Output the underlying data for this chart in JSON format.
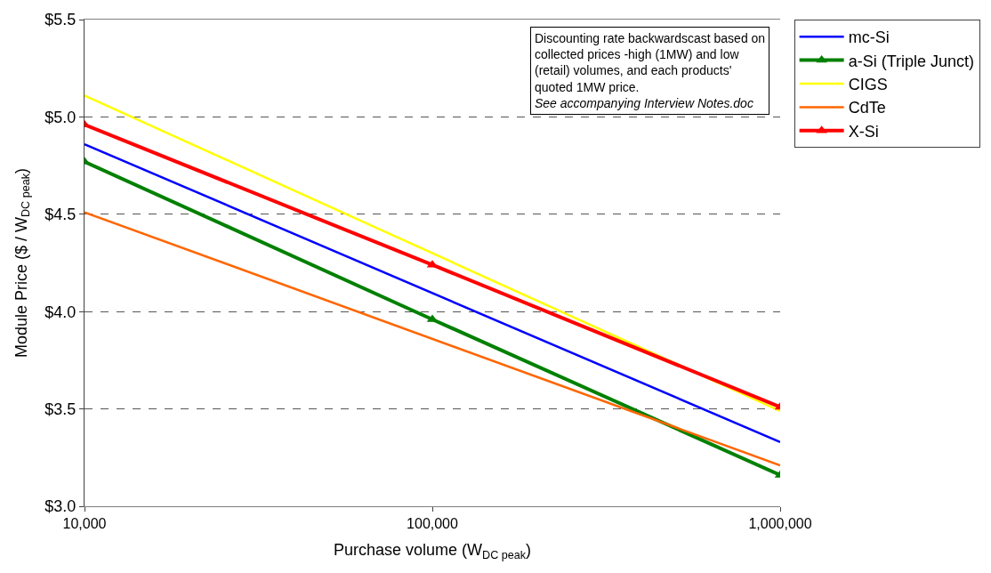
{
  "chart_data": {
    "type": "line",
    "xlabel": "Purchase volume (W$_{DC peak}$)",
    "ylabel": "Module Price ($ / W$_{DC peak}$)",
    "log": "x",
    "xlim": [
      10000,
      1000000
    ],
    "xticks": [
      {
        "value": 10000,
        "label": "10,000"
      },
      {
        "value": 100000,
        "label": "100,000"
      },
      {
        "value": 1000000,
        "label": "1,000,000"
      }
    ],
    "ylim": [
      3.0,
      5.5
    ],
    "yticks": [
      {
        "value": 3.0,
        "label": "$3.0"
      },
      {
        "value": 3.5,
        "label": "$3.5"
      },
      {
        "value": 4.0,
        "label": "$4.0"
      },
      {
        "value": 4.5,
        "label": "$4.5"
      },
      {
        "value": 5.0,
        "label": "$5.0"
      },
      {
        "value": 5.5,
        "label": "$5.5"
      }
    ],
    "grid": "y",
    "legend": "right",
    "annotations": [
      "Discounting rate backwardscast based on collected prices -high (1MW) and low (retail) volumes, and each products' quoted 1MW price.",
      "See accompanying Interview Notes.doc"
    ],
    "series": [
      {
        "name": "mc-Si",
        "color": "#0000ff",
        "x": [
          10000,
          1000000
        ],
        "values": [
          4.86,
          3.33
        ],
        "marker": "none"
      },
      {
        "name": "a-Si (Triple Junct)",
        "color": "#008000",
        "x": [
          10000,
          100000,
          1000000
        ],
        "values": [
          4.77,
          3.96,
          3.16
        ],
        "marker": "triangle"
      },
      {
        "name": "CIGS",
        "color": "#ffff00",
        "x": [
          10000,
          1000000
        ],
        "values": [
          5.11,
          3.49
        ],
        "marker": "none"
      },
      {
        "name": "CdTe",
        "color": "#ff6600",
        "x": [
          10000,
          1000000
        ],
        "values": [
          4.51,
          3.21
        ],
        "marker": "none"
      },
      {
        "name": "X-Si",
        "color": "#ff0000",
        "x": [
          10000,
          100000,
          1000000
        ],
        "values": [
          4.96,
          4.24,
          3.51
        ],
        "marker": "triangle"
      }
    ]
  }
}
